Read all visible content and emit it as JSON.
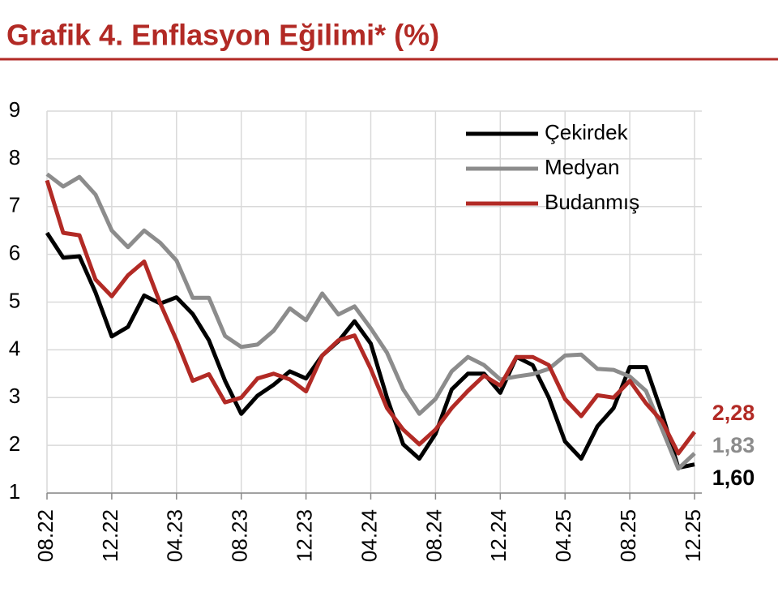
{
  "chart_data": {
    "type": "line",
    "title": "Grafik 4. Enflasyon Eğilimi* (%)",
    "categories": [
      "08.22",
      null,
      null,
      null,
      "12.22",
      null,
      null,
      null,
      "04.23",
      null,
      null,
      null,
      "08.23",
      null,
      null,
      null,
      "12.23",
      null,
      null,
      null,
      "04.24",
      null,
      null,
      null,
      "08.24",
      null,
      null,
      null,
      "12.24",
      null,
      null,
      null,
      "04.25",
      null,
      null,
      null,
      "08.25",
      null,
      null,
      null,
      "12.25"
    ],
    "series": [
      {
        "name": "Çekirdek",
        "color": "#000000",
        "values": [
          6.45,
          5.93,
          5.96,
          5.2,
          4.28,
          4.48,
          5.14,
          4.97,
          5.1,
          4.75,
          4.2,
          3.35,
          2.66,
          3.04,
          3.27,
          3.55,
          3.4,
          3.88,
          4.18,
          4.6,
          4.13,
          3.0,
          2.02,
          1.72,
          2.24,
          3.17,
          3.5,
          3.5,
          3.1,
          3.85,
          3.68,
          3.0,
          2.08,
          1.72,
          2.4,
          2.78,
          3.64,
          3.64,
          2.66,
          1.53,
          1.6
        ],
        "value_labels": [
          null,
          null,
          null,
          null,
          null,
          null,
          null,
          null,
          null,
          null,
          null,
          null,
          null,
          null,
          null,
          null,
          null,
          null,
          null,
          null,
          null,
          null,
          null,
          null,
          null,
          null,
          null,
          null,
          null,
          null,
          null,
          null,
          null,
          null,
          null,
          null,
          null,
          null,
          null,
          null,
          "1,60"
        ]
      },
      {
        "name": "Medyan",
        "color": "#8c8c8c",
        "values": [
          7.68,
          7.42,
          7.62,
          7.25,
          6.5,
          6.15,
          6.5,
          6.24,
          5.87,
          5.09,
          5.09,
          4.29,
          4.06,
          4.11,
          4.4,
          4.87,
          4.62,
          5.18,
          4.74,
          4.91,
          4.45,
          3.94,
          3.17,
          2.66,
          2.97,
          3.55,
          3.85,
          3.68,
          3.38,
          3.44,
          3.49,
          3.6,
          3.88,
          3.9,
          3.6,
          3.58,
          3.44,
          3.14,
          2.33,
          1.51,
          1.83
        ],
        "value_labels": [
          null,
          null,
          null,
          null,
          null,
          null,
          null,
          null,
          null,
          null,
          null,
          null,
          null,
          null,
          null,
          null,
          null,
          null,
          null,
          null,
          null,
          null,
          null,
          null,
          null,
          null,
          null,
          null,
          null,
          null,
          null,
          null,
          null,
          null,
          null,
          null,
          null,
          null,
          null,
          null,
          "1,83"
        ]
      },
      {
        "name": "Budanmış",
        "color": "#b22a25",
        "values": [
          7.55,
          6.45,
          6.4,
          5.47,
          5.12,
          5.56,
          5.85,
          4.97,
          4.2,
          3.35,
          3.49,
          2.9,
          3.0,
          3.4,
          3.5,
          3.38,
          3.13,
          3.88,
          4.2,
          4.3,
          3.6,
          2.78,
          2.33,
          2.02,
          2.33,
          2.78,
          3.14,
          3.46,
          3.25,
          3.85,
          3.85,
          3.68,
          2.97,
          2.61,
          3.05,
          3.0,
          3.35,
          2.88,
          2.5,
          1.83,
          2.28
        ],
        "value_labels": [
          null,
          null,
          null,
          null,
          null,
          null,
          null,
          null,
          null,
          null,
          null,
          null,
          null,
          null,
          null,
          null,
          null,
          null,
          null,
          null,
          null,
          null,
          null,
          null,
          null,
          null,
          null,
          null,
          null,
          null,
          null,
          null,
          null,
          null,
          null,
          null,
          null,
          null,
          null,
          null,
          "2,28"
        ]
      }
    ],
    "ylim": [
      1,
      9
    ],
    "yticks": [
      1,
      2,
      3,
      4,
      5,
      6,
      7,
      8,
      9
    ],
    "grid": true,
    "legend": "top-right"
  }
}
